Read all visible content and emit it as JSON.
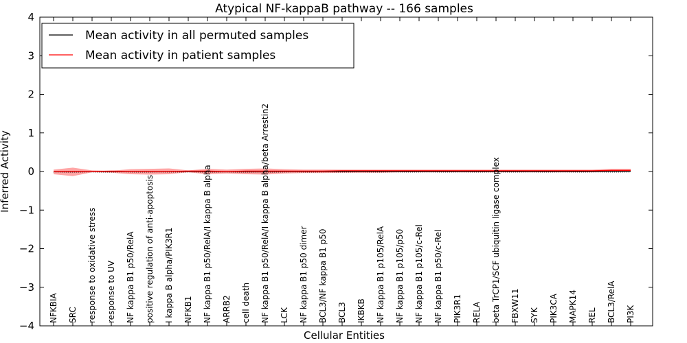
{
  "chart_data": {
    "type": "line",
    "title": "Atypical NF-kappaB pathway -- 166 samples",
    "xlabel": "Cellular Entities",
    "ylabel": "Inferred Activity",
    "ylim": [
      -4,
      4
    ],
    "yticks": [
      "4",
      "3",
      "2",
      "1",
      "0",
      "−1",
      "−2",
      "−3",
      "−4"
    ],
    "ytick_values": [
      4,
      3,
      2,
      1,
      0,
      -1,
      -2,
      -3,
      -4
    ],
    "grid": false,
    "legend_position": "top-left",
    "categories": [
      "NFKBIA",
      "SRC",
      "response to oxidative stress",
      "response to UV",
      "NF kappa B1 p50/RelA",
      "positive regulation of anti-apoptosis",
      "I kappa B alpha/PIK3R1",
      "NFKB1",
      "NF kappa B1 p50/RelA/I kappa B alpha",
      "ARRB2",
      "cell death",
      "NF kappa B1 p50/RelA/I kappa B alpha/beta Arrestin2",
      "LCK",
      "NF kappa B1 p50 dimer",
      "BCL3/NF kappa B1 p50",
      "BCL3",
      "IKBKB",
      "NF kappa B1 p105/RelA",
      "NF kappa B1 p105/p50",
      "NF kappa B1 p105/c-Rel",
      "NF kappa B1 p50/c-Rel",
      "PIK3R1",
      "RELA",
      "beta TrCP1/SCF ubiquitin ligase complex",
      "FBXW11",
      "SYK",
      "PIK3CA",
      "MAPK14",
      "REL",
      "BCL3/RelA",
      "PI3K"
    ],
    "series": [
      {
        "name": "Mean activity in all permuted samples",
        "color": "#000000",
        "values": [
          0.0,
          0.0,
          0.0,
          0.0,
          0.0,
          0.0,
          0.0,
          0.0,
          0.0,
          0.0,
          0.0,
          0.0,
          0.0,
          0.0,
          0.0,
          0.0,
          0.0,
          0.0,
          0.0,
          0.0,
          0.0,
          0.0,
          0.0,
          0.0,
          0.0,
          0.0,
          0.0,
          0.0,
          0.0,
          0.0,
          0.0
        ],
        "band_upper": [
          0.0,
          0.01,
          0.0,
          0.0,
          0.0,
          0.0,
          0.0,
          0.0,
          0.0,
          0.0,
          0.0,
          0.0,
          0.0,
          0.0,
          0.0,
          0.0,
          0.0,
          0.0,
          0.0,
          0.0,
          0.0,
          0.0,
          0.0,
          0.0,
          0.0,
          0.0,
          0.0,
          0.0,
          0.0,
          0.0,
          0.0
        ],
        "band_lower": [
          -0.02,
          -0.04,
          -0.01,
          -0.01,
          -0.02,
          -0.03,
          -0.02,
          -0.01,
          -0.03,
          -0.03,
          -0.04,
          -0.04,
          -0.02,
          -0.02,
          -0.02,
          -0.02,
          -0.02,
          -0.02,
          -0.02,
          -0.02,
          -0.02,
          -0.02,
          -0.02,
          -0.02,
          -0.02,
          -0.02,
          -0.02,
          -0.02,
          -0.01,
          -0.01,
          -0.01
        ]
      },
      {
        "name": "Mean activity in patient samples",
        "color": "#ff0000",
        "values": [
          0.0,
          0.0,
          0.0,
          0.01,
          0.0,
          0.0,
          0.0,
          0.01,
          0.01,
          0.0,
          0.01,
          0.01,
          0.01,
          0.01,
          0.01,
          0.02,
          0.02,
          0.02,
          0.02,
          0.02,
          0.02,
          0.02,
          0.02,
          0.02,
          0.02,
          0.02,
          0.02,
          0.02,
          0.02,
          0.03,
          0.03
        ],
        "band_upper": [
          0.05,
          0.1,
          0.03,
          0.02,
          0.06,
          0.07,
          0.08,
          0.03,
          0.07,
          0.05,
          0.07,
          0.08,
          0.06,
          0.05,
          0.05,
          0.05,
          0.05,
          0.05,
          0.05,
          0.05,
          0.05,
          0.05,
          0.05,
          0.05,
          0.05,
          0.05,
          0.05,
          0.05,
          0.05,
          0.07,
          0.07
        ],
        "band_lower": [
          -0.07,
          -0.12,
          -0.02,
          -0.03,
          -0.07,
          -0.08,
          -0.07,
          -0.02,
          -0.07,
          -0.05,
          -0.07,
          -0.08,
          -0.05,
          -0.04,
          -0.04,
          -0.03,
          -0.03,
          -0.03,
          -0.02,
          -0.02,
          -0.02,
          -0.02,
          -0.02,
          -0.02,
          -0.02,
          -0.02,
          -0.02,
          -0.02,
          -0.02,
          -0.01,
          -0.01
        ]
      }
    ]
  }
}
